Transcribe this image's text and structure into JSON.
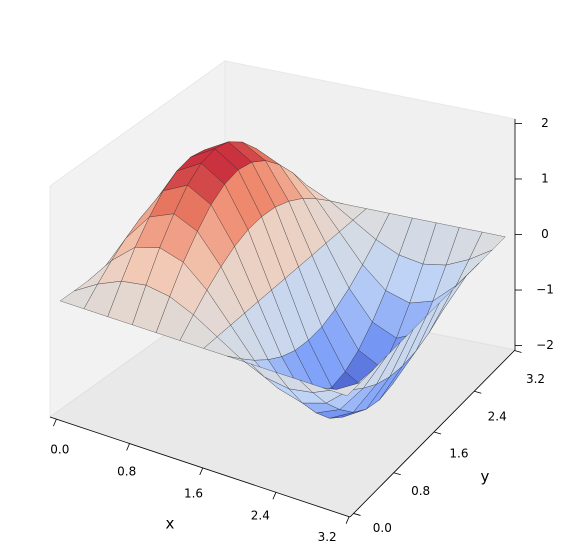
{
  "chart_data": {
    "type": "surface",
    "x": [
      0,
      0.26,
      0.52,
      0.79,
      1.05,
      1.31,
      1.57,
      1.83,
      2.09,
      2.36,
      2.62,
      2.88,
      3.14
    ],
    "y": [
      0,
      0.26,
      0.52,
      0.79,
      1.05,
      1.31,
      1.57,
      1.83,
      2.09,
      2.36,
      2.62,
      2.88,
      3.14
    ],
    "z": [
      [
        0,
        0,
        0,
        0,
        0,
        0,
        0,
        0,
        0,
        0,
        0,
        0,
        0
      ],
      [
        0,
        0.26,
        0.45,
        0.52,
        0.45,
        0.26,
        0,
        -0.26,
        -0.45,
        -0.52,
        -0.45,
        -0.26,
        0
      ],
      [
        0,
        0.5,
        0.87,
        1,
        0.87,
        0.5,
        0,
        -0.5,
        -0.87,
        -1,
        -0.87,
        -0.5,
        0
      ],
      [
        0,
        0.71,
        1.22,
        1.41,
        1.22,
        0.71,
        0,
        -0.71,
        -1.22,
        -1.41,
        -1.22,
        -0.71,
        0
      ],
      [
        0,
        0.87,
        1.5,
        1.73,
        1.5,
        0.87,
        0,
        -0.87,
        -1.5,
        -1.73,
        -1.5,
        -0.87,
        0
      ],
      [
        0,
        0.97,
        1.67,
        1.93,
        1.67,
        0.97,
        0,
        -0.97,
        -1.67,
        -1.93,
        -1.67,
        -0.97,
        0
      ],
      [
        0,
        1,
        1.73,
        2,
        1.73,
        1,
        0,
        -1,
        -1.73,
        -2,
        -1.73,
        -1,
        0
      ],
      [
        0,
        0.97,
        1.67,
        1.93,
        1.67,
        0.97,
        0,
        -0.97,
        -1.67,
        -1.93,
        -1.67,
        -0.97,
        0
      ],
      [
        0,
        0.87,
        1.5,
        1.73,
        1.5,
        0.87,
        0,
        -0.87,
        -1.5,
        -1.73,
        -1.5,
        -0.87,
        0
      ],
      [
        0,
        0.71,
        1.22,
        1.41,
        1.22,
        0.71,
        0,
        -0.71,
        -1.22,
        -1.41,
        -1.22,
        -0.71,
        0
      ],
      [
        0,
        0.5,
        0.87,
        1,
        0.87,
        0.5,
        0,
        -0.5,
        -0.87,
        -1,
        -0.87,
        -0.5,
        0
      ],
      [
        0,
        0.26,
        0.45,
        0.52,
        0.45,
        0.26,
        0,
        -0.26,
        -0.45,
        -0.52,
        -0.45,
        -0.26,
        0
      ],
      [
        0,
        0,
        0,
        0,
        0,
        0,
        0,
        0,
        0,
        0,
        0,
        0,
        0
      ]
    ],
    "cmap": "coolwarm",
    "xlabel": "x",
    "ylabel": "y",
    "xlim": [
      -0.07,
      3.21
    ],
    "ylim": [
      -0.07,
      3.21
    ],
    "zlim": [
      -2.08,
      2.08
    ],
    "xticks": [
      {
        "value": 0,
        "label": "0.0"
      },
      {
        "value": 0.8,
        "label": "0.8"
      },
      {
        "value": 1.6,
        "label": "1.6"
      },
      {
        "value": 2.4,
        "label": "2.4"
      },
      {
        "value": 3.2,
        "label": "3.2"
      }
    ],
    "yticks": [
      {
        "value": 0,
        "label": "0.0"
      },
      {
        "value": 0.8,
        "label": "0.8"
      },
      {
        "value": 1.6,
        "label": "1.6"
      },
      {
        "value": 2.4,
        "label": "2.4"
      },
      {
        "value": 3.2,
        "label": "3.2"
      }
    ],
    "zticks": [
      {
        "value": -2,
        "label": "−2"
      },
      {
        "value": -1,
        "label": "−1"
      },
      0,
      1,
      2
    ],
    "grid": false
  }
}
